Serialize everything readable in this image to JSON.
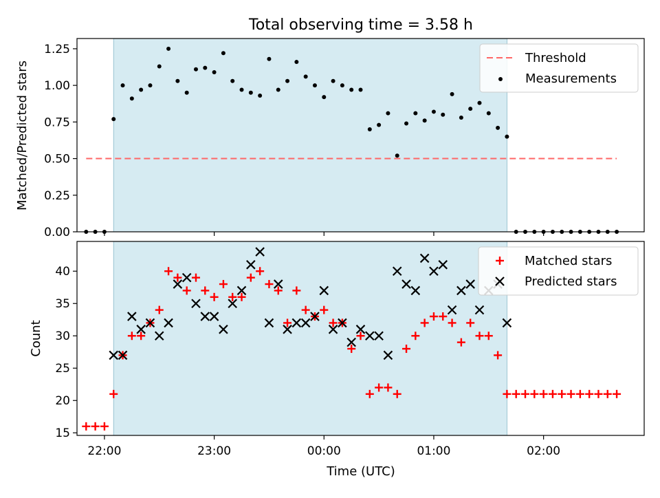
{
  "chart_data": [
    {
      "type": "scatter",
      "title": "Total observing time = 3.58 h",
      "xlabel": "",
      "ylabel": "Matched/Predicted stars",
      "xlim": [
        "21:45",
        "02:55"
      ],
      "ylim": [
        0,
        1.32
      ],
      "yticks": [
        "0.00",
        "0.25",
        "0.50",
        "0.75",
        "1.00",
        "1.25"
      ],
      "shaded_interval": [
        "22:05",
        "01:40"
      ],
      "threshold": {
        "name": "Threshold",
        "value": 0.5,
        "x_start": "21:50",
        "x_end": "02:40"
      },
      "series": [
        {
          "name": "Measurements",
          "x": [
            "21:50",
            "21:55",
            "22:00",
            "22:05",
            "22:10",
            "22:15",
            "22:20",
            "22:25",
            "22:30",
            "22:35",
            "22:40",
            "22:45",
            "22:50",
            "22:55",
            "23:00",
            "23:05",
            "23:10",
            "23:15",
            "23:20",
            "23:25",
            "23:30",
            "23:35",
            "23:40",
            "23:45",
            "23:50",
            "23:55",
            "00:00",
            "00:05",
            "00:10",
            "00:15",
            "00:20",
            "00:25",
            "00:30",
            "00:35",
            "00:40",
            "00:45",
            "00:50",
            "00:55",
            "01:00",
            "01:05",
            "01:10",
            "01:15",
            "01:20",
            "01:25",
            "01:30",
            "01:35",
            "01:40",
            "01:45",
            "01:50",
            "01:55",
            "02:00",
            "02:05",
            "02:10",
            "02:15",
            "02:20",
            "02:25",
            "02:30",
            "02:35",
            "02:40"
          ],
          "values": [
            0,
            0,
            0,
            0.77,
            1.0,
            0.91,
            0.97,
            1.0,
            1.13,
            1.25,
            1.03,
            0.95,
            1.11,
            1.12,
            1.09,
            1.22,
            1.03,
            0.97,
            0.95,
            0.93,
            1.18,
            0.97,
            1.03,
            1.16,
            1.06,
            1.0,
            0.92,
            1.03,
            1.0,
            0.97,
            0.97,
            0.7,
            0.73,
            0.81,
            0.52,
            0.74,
            0.81,
            0.76,
            0.82,
            0.8,
            0.94,
            0.78,
            0.84,
            0.88,
            0.81,
            0.71,
            0.65,
            0,
            0,
            0,
            0,
            0,
            0,
            0,
            0,
            0,
            0,
            0,
            0
          ]
        }
      ]
    },
    {
      "type": "scatter",
      "title": "",
      "xlabel": "Time (UTC)",
      "ylabel": "Count",
      "xlim": [
        "21:45",
        "02:55"
      ],
      "ylim": [
        14.6,
        44.6
      ],
      "yticks": [
        "15",
        "20",
        "25",
        "30",
        "35",
        "40"
      ],
      "xticks": [
        "22:00",
        "23:00",
        "00:00",
        "01:00",
        "02:00"
      ],
      "shaded_interval": [
        "22:05",
        "01:40"
      ],
      "series": [
        {
          "name": "Matched stars",
          "color": "#ff0000",
          "marker": "plus",
          "x": [
            "21:50",
            "21:55",
            "22:00",
            "22:05",
            "22:10",
            "22:15",
            "22:20",
            "22:25",
            "22:30",
            "22:35",
            "22:40",
            "22:45",
            "22:50",
            "22:55",
            "23:00",
            "23:05",
            "23:10",
            "23:15",
            "23:20",
            "23:25",
            "23:30",
            "23:35",
            "23:40",
            "23:45",
            "23:50",
            "23:55",
            "00:00",
            "00:05",
            "00:10",
            "00:15",
            "00:20",
            "00:25",
            "00:30",
            "00:35",
            "00:40",
            "00:45",
            "00:50",
            "00:55",
            "01:00",
            "01:05",
            "01:10",
            "01:15",
            "01:20",
            "01:25",
            "01:30",
            "01:35",
            "01:40",
            "01:45",
            "01:50",
            "01:55",
            "02:00",
            "02:05",
            "02:10",
            "02:15",
            "02:20",
            "02:25",
            "02:30",
            "02:35",
            "02:40"
          ],
          "values": [
            16,
            16,
            16,
            21,
            27,
            30,
            30,
            32,
            34,
            40,
            39,
            37,
            39,
            37,
            36,
            38,
            36,
            36,
            39,
            40,
            38,
            37,
            32,
            37,
            34,
            33,
            34,
            32,
            32,
            28,
            30,
            21,
            22,
            22,
            21,
            28,
            30,
            32,
            33,
            33,
            32,
            29,
            32,
            30,
            30,
            27,
            21,
            21,
            21,
            21,
            21,
            21,
            21,
            21,
            21,
            21,
            21,
            21,
            21
          ]
        },
        {
          "name": "Predicted stars",
          "color": "#000000",
          "marker": "x",
          "x": [
            "22:05",
            "22:10",
            "22:15",
            "22:20",
            "22:25",
            "22:30",
            "22:35",
            "22:40",
            "22:45",
            "22:50",
            "22:55",
            "23:00",
            "23:05",
            "23:10",
            "23:15",
            "23:20",
            "23:25",
            "23:30",
            "23:35",
            "23:40",
            "23:45",
            "23:50",
            "23:55",
            "00:00",
            "00:05",
            "00:10",
            "00:15",
            "00:20",
            "00:25",
            "00:30",
            "00:35",
            "00:40",
            "00:45",
            "00:50",
            "00:55",
            "01:00",
            "01:05",
            "01:10",
            "01:15",
            "01:20",
            "01:25",
            "01:30",
            "01:35",
            "01:40"
          ],
          "values": [
            27,
            27,
            33,
            31,
            32,
            30,
            32,
            38,
            39,
            35,
            33,
            33,
            31,
            35,
            37,
            41,
            43,
            32,
            38,
            31,
            32,
            32,
            33,
            37,
            31,
            32,
            29,
            31,
            30,
            30,
            27,
            40,
            38,
            37,
            42,
            40,
            41,
            34,
            37,
            38,
            34,
            37,
            38,
            32
          ]
        }
      ]
    }
  ]
}
